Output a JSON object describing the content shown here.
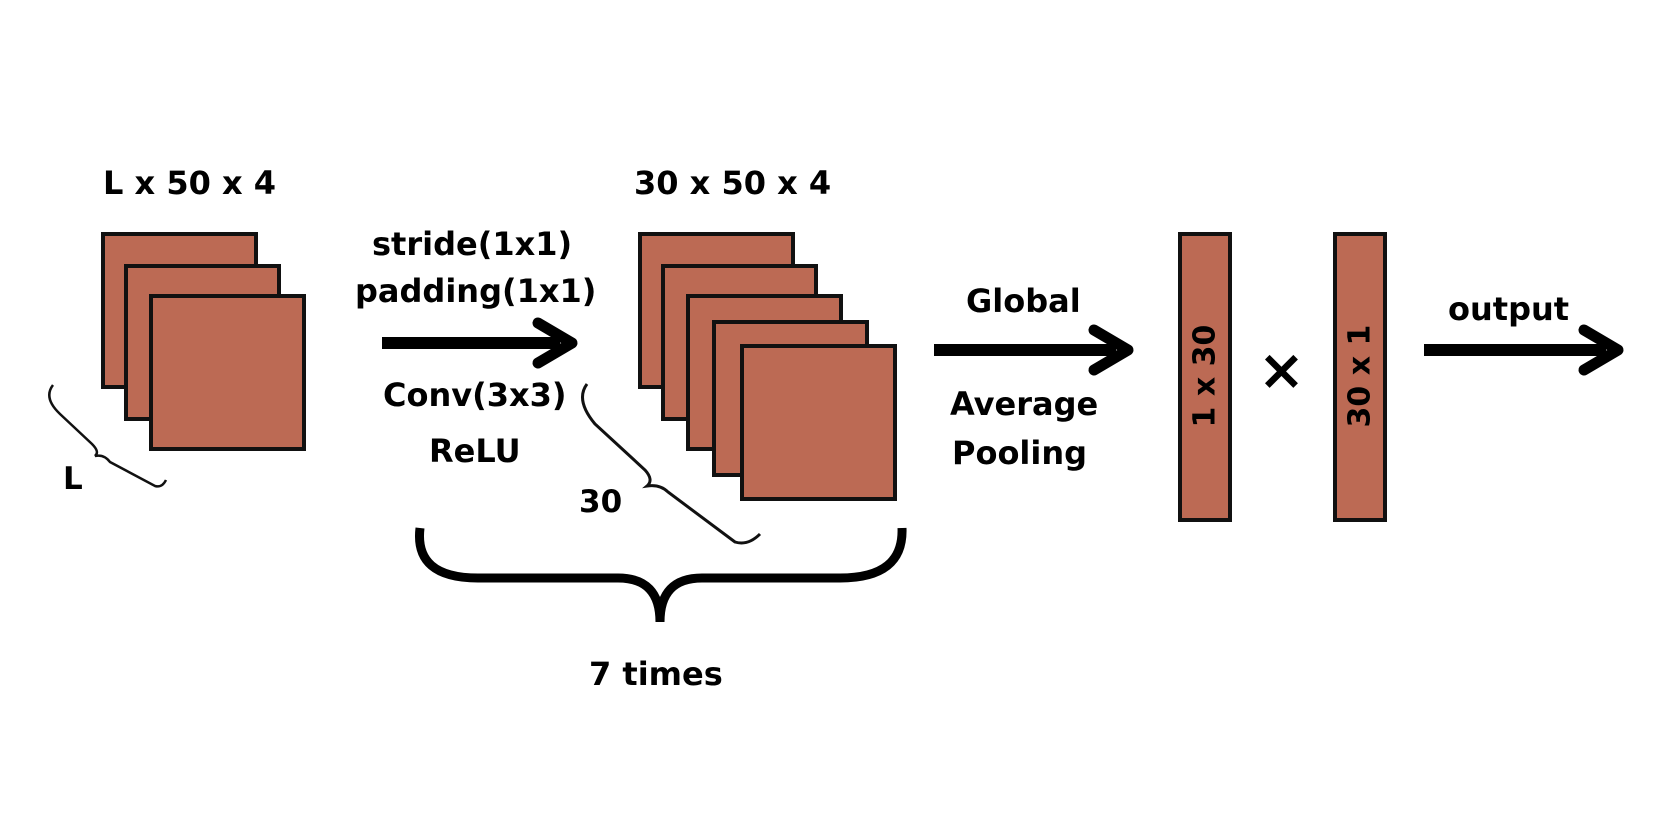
{
  "input": {
    "shape": "L x 50 x 4",
    "depth_label": "L"
  },
  "conv_block": {
    "params": [
      "stride(1x1)",
      "padding(1x1)"
    ],
    "ops": [
      "Conv(3x3)",
      "ReLU"
    ],
    "output_shape": "30 x 50 x 4",
    "depth_label": "30",
    "repeat": "7 times"
  },
  "pooling": {
    "line1": "Global",
    "line2": "Average",
    "line3": "Pooling"
  },
  "vectors": {
    "left": "1 x 30",
    "right": "30 x 1",
    "operator": "×"
  },
  "output_label": "output",
  "colors": {
    "fill": "#BC6A54",
    "stroke": "#111111"
  }
}
